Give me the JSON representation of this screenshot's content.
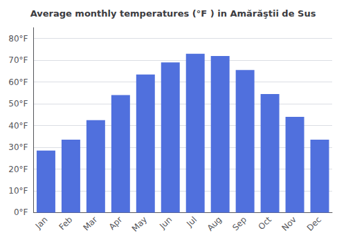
{
  "chart_data": {
    "type": "bar",
    "title": "Average monthly temperatures (°F ) in Amărăştii de Sus",
    "categories": [
      "Jan",
      "Feb",
      "Mar",
      "Apr",
      "May",
      "Jun",
      "Jul",
      "Aug",
      "Sep",
      "Oct",
      "Nov",
      "Dec"
    ],
    "values": [
      28.5,
      33.5,
      42.5,
      54.0,
      63.5,
      69.0,
      73.0,
      72.0,
      65.5,
      54.5,
      44.0,
      33.5
    ],
    "ylim": [
      0,
      85
    ],
    "yticks": [
      {
        "value": 0,
        "label": "0°F"
      },
      {
        "value": 10,
        "label": "10°F"
      },
      {
        "value": 20,
        "label": "20°F"
      },
      {
        "value": 30,
        "label": "30°F"
      },
      {
        "value": 40,
        "label": "40°F"
      },
      {
        "value": 50,
        "label": "50°F"
      },
      {
        "value": 60,
        "label": "60°F"
      },
      {
        "value": 70,
        "label": "70°F"
      },
      {
        "value": 80,
        "label": "80°F"
      }
    ],
    "grid": true
  }
}
